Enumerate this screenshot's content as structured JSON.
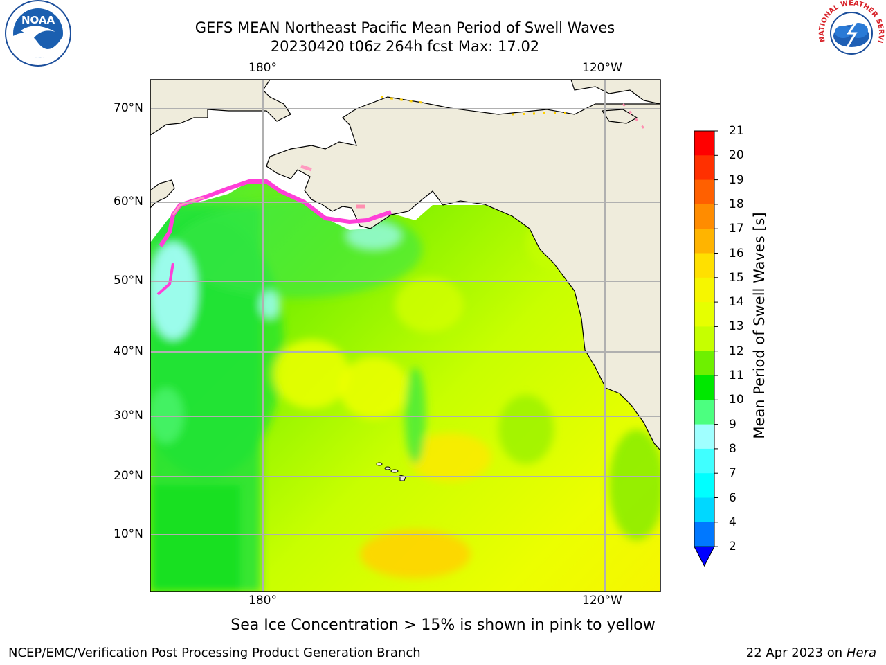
{
  "title": {
    "line1": "GEFS MEAN Northeast Pacific Mean Period of Swell Waves",
    "line2": "20230420 t06z 264h fcst   Max: 17.02"
  },
  "map": {
    "lon_labels_top": [
      "180°",
      "120°W"
    ],
    "lon_labels_bottom": [
      "180°",
      "120°W"
    ],
    "lat_labels": [
      "70°N",
      "60°N",
      "50°N",
      "40°N",
      "30°N",
      "20°N",
      "10°N"
    ],
    "land_color": "#efecdc",
    "ice_colors": [
      "#ff3fd8",
      "#ff8fb0",
      "#ffd000"
    ]
  },
  "colorbar": {
    "label": "Mean Period of Swell Waves [s]",
    "ticks": [
      "21",
      "20",
      "19",
      "18",
      "17",
      "16",
      "15",
      "14",
      "13",
      "12",
      "11",
      "10",
      "9",
      "8",
      "7",
      "6",
      "4",
      "2"
    ],
    "colors": [
      "#ff0000",
      "#ff3000",
      "#ff6000",
      "#ff8c00",
      "#ffb400",
      "#ffe000",
      "#f6f600",
      "#e6ff00",
      "#c6ff00",
      "#6ef000",
      "#00e800",
      "#4cff80",
      "#a0ffff",
      "#40ffff",
      "#00ffff",
      "#00d8ff",
      "#0078ff"
    ],
    "extend_color": "#0000ff"
  },
  "ice_note": "Sea Ice Concentration > 15% is shown in pink to yellow",
  "footer": {
    "left": "NCEP/EMC/Verification Post Processing Product Generation Branch",
    "date": "22 Apr 2023 on ",
    "machine": "Hera"
  },
  "logos": {
    "noaa_text": "NOAA",
    "nws_text": "NATIONAL WEATHER SERVICE"
  }
}
